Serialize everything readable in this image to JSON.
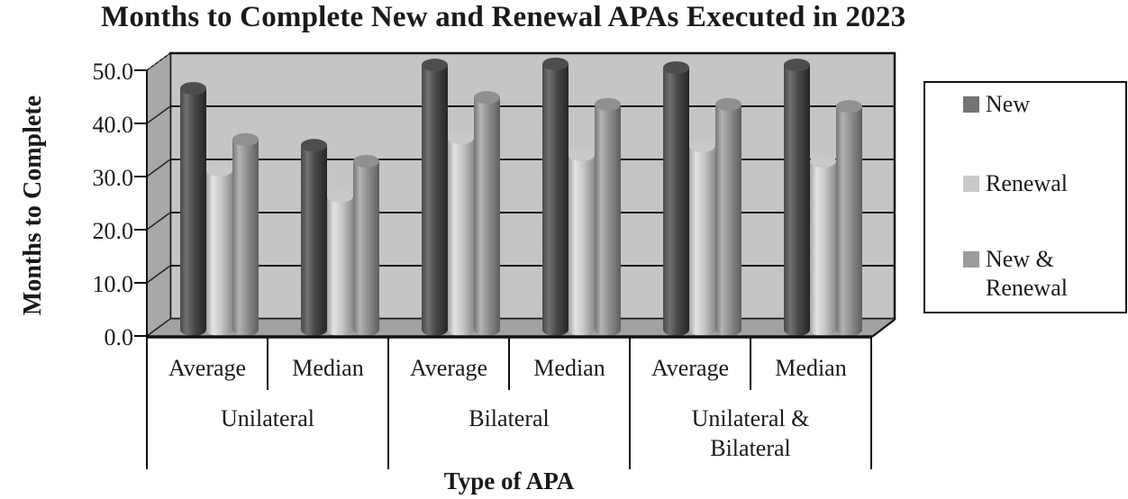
{
  "title": "Months to Complete New and Renewal APAs Executed in 2023",
  "y_axis": {
    "label": "Months to Complete",
    "ticks": [
      "50.0",
      "40.0",
      "30.0",
      "20.0",
      "10.0",
      "0.0"
    ]
  },
  "x_axis": {
    "label": "Type of APA",
    "groups": [
      {
        "label": "Unilateral",
        "sub": [
          "Average",
          "Median"
        ]
      },
      {
        "label": "Bilateral",
        "sub": [
          "Average",
          "Median"
        ]
      },
      {
        "label": "Unilateral & Bilateral",
        "sub": [
          "Average",
          "Median"
        ]
      }
    ]
  },
  "legend": {
    "items": [
      {
        "label": "New",
        "color": "#747474"
      },
      {
        "label": "Renewal",
        "color": "#c9c9c9"
      },
      {
        "label": "New & Renewal",
        "color": "#9b9b9b"
      }
    ]
  },
  "colors": {
    "background": "#ffffff",
    "back_wall": "#c5c5c5",
    "side_wall": "#a8a8a8",
    "floor": "#a2a2a2",
    "line": "#111111",
    "text": "#1a1a1a"
  },
  "chart_data": {
    "type": "bar",
    "style": "3d-cylinder",
    "title": "Months to Complete New and Renewal APAs Executed in 2023",
    "xlabel": "Type of APA",
    "ylabel": "Months to Complete",
    "ylim": [
      0,
      50
    ],
    "ytick_step": 10,
    "grid": true,
    "legend_position": "right",
    "categories": [
      "Unilateral Average",
      "Unilateral Median",
      "Bilateral Average",
      "Bilateral Median",
      "Unilateral & Bilateral Average",
      "Unilateral & Bilateral Median"
    ],
    "series": [
      {
        "name": "New",
        "color": "#747474",
        "values": [
          45.4,
          34.7,
          49.8,
          50.0,
          49.3,
          49.8
        ]
      },
      {
        "name": "Renewal",
        "color": "#c9c9c9",
        "values": [
          30.0,
          25.1,
          36.1,
          32.9,
          34.6,
          31.7
        ]
      },
      {
        "name": "New & Renewal",
        "color": "#9b9b9b",
        "values": [
          35.8,
          31.7,
          43.7,
          42.4,
          42.4,
          42.0
        ]
      }
    ]
  }
}
